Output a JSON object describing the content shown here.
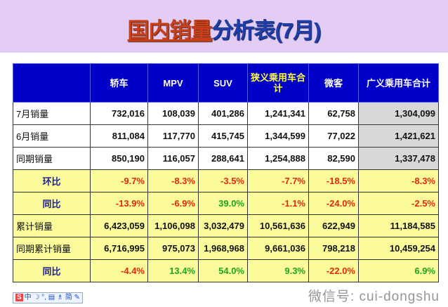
{
  "title": {
    "part1": "国内销量",
    "part2": "分析表(7月)"
  },
  "table": {
    "headers": [
      "",
      "轿车",
      "MPV",
      "SUV",
      "狭义乘用车合计",
      "微客",
      "广义乘用车合计"
    ],
    "header_highlight_index": 4,
    "rows": [
      {
        "label": "7月销量",
        "cells": [
          "732,016",
          "108,039",
          "401,286",
          "1,241,341",
          "62,758",
          "1,304,099"
        ],
        "style": "white"
      },
      {
        "label": "6月销量",
        "cells": [
          "811,084",
          "117,770",
          "415,745",
          "1,344,599",
          "77,022",
          "1,421,621"
        ],
        "style": "white"
      },
      {
        "label": "同期销量",
        "cells": [
          "850,190",
          "116,057",
          "288,641",
          "1,254,888",
          "82,590",
          "1,337,478"
        ],
        "style": "white"
      },
      {
        "label": "环比",
        "cells": [
          "-9.7%",
          "-8.3%",
          "-3.5%",
          "-7.7%",
          "-18.5%",
          "-8.3%"
        ],
        "style": "pct"
      },
      {
        "label": "同比",
        "cells": [
          "-13.9%",
          "-6.9%",
          "39.0%",
          "-1.1%",
          "-24.0%",
          "-2.5%"
        ],
        "style": "pct"
      },
      {
        "label": "累计销量",
        "cells": [
          "6,423,059",
          "1,106,098",
          "3,032,479",
          "10,561,636",
          "622,949",
          "11,184,585"
        ],
        "style": "yellow"
      },
      {
        "label": "同期累计销量",
        "cells": [
          "6,716,995",
          "975,073",
          "1,968,968",
          "9,661,036",
          "798,218",
          "10,459,254"
        ],
        "style": "yellow"
      },
      {
        "label": "同比",
        "cells": [
          "-4.4%",
          "13.4%",
          "54.0%",
          "9.3%",
          "-22.0%",
          "6.9%"
        ],
        "style": "pct"
      }
    ]
  },
  "colors": {
    "header_bg": "#0000c8",
    "banner_bg": "#e3cdf5",
    "negative": "#e22a0a",
    "positive": "#1ea41e",
    "yellow_row": "#fbfb9c"
  },
  "watermark": "微信号: cui-dongshu",
  "ime_toolbar": "中 ☽ °, ▤ ♗ 简 ✎"
}
